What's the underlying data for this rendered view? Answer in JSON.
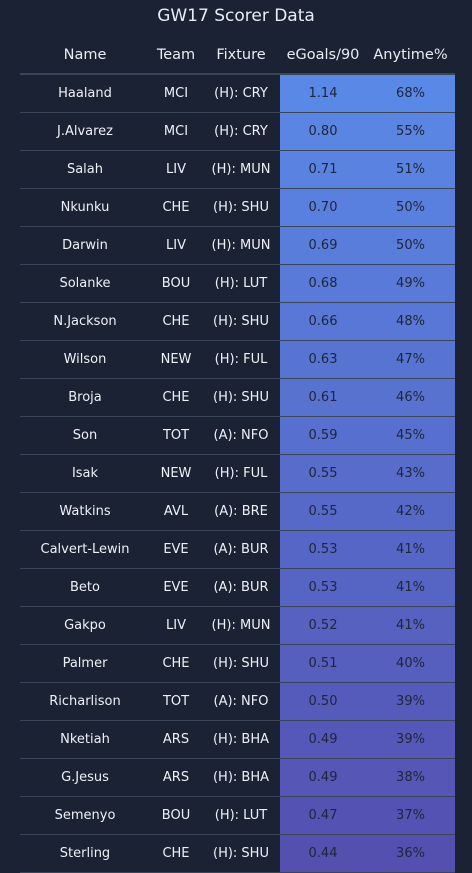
{
  "title": "GW17 Scorer Data",
  "columns": {
    "name": "Name",
    "team": "Team",
    "fixture": "Fixture",
    "egoals": "eGoals/90",
    "anytime": "Anytime%"
  },
  "colors": {
    "background": "#1a2233",
    "divider": "#3a4558",
    "heat_high": "#5a88e6",
    "heat_low": "#5450b0"
  },
  "rows": [
    {
      "name": "Haaland",
      "team": "MCI",
      "fixture": "(H): CRY",
      "egoals": "1.14",
      "anytime": "68%"
    },
    {
      "name": "J.Alvarez",
      "team": "MCI",
      "fixture": "(H): CRY",
      "egoals": "0.80",
      "anytime": "55%"
    },
    {
      "name": "Salah",
      "team": "LIV",
      "fixture": "(H): MUN",
      "egoals": "0.71",
      "anytime": "51%"
    },
    {
      "name": "Nkunku",
      "team": "CHE",
      "fixture": "(H): SHU",
      "egoals": "0.70",
      "anytime": "50%"
    },
    {
      "name": "Darwin",
      "team": "LIV",
      "fixture": "(H): MUN",
      "egoals": "0.69",
      "anytime": "50%"
    },
    {
      "name": "Solanke",
      "team": "BOU",
      "fixture": "(H): LUT",
      "egoals": "0.68",
      "anytime": "49%"
    },
    {
      "name": "N.Jackson",
      "team": "CHE",
      "fixture": "(H): SHU",
      "egoals": "0.66",
      "anytime": "48%"
    },
    {
      "name": "Wilson",
      "team": "NEW",
      "fixture": "(H): FUL",
      "egoals": "0.63",
      "anytime": "47%"
    },
    {
      "name": "Broja",
      "team": "CHE",
      "fixture": "(H): SHU",
      "egoals": "0.61",
      "anytime": "46%"
    },
    {
      "name": "Son",
      "team": "TOT",
      "fixture": "(A): NFO",
      "egoals": "0.59",
      "anytime": "45%"
    },
    {
      "name": "Isak",
      "team": "NEW",
      "fixture": "(H): FUL",
      "egoals": "0.55",
      "anytime": "43%"
    },
    {
      "name": "Watkins",
      "team": "AVL",
      "fixture": "(A): BRE",
      "egoals": "0.55",
      "anytime": "42%"
    },
    {
      "name": "Calvert-Lewin",
      "team": "EVE",
      "fixture": "(A): BUR",
      "egoals": "0.53",
      "anytime": "41%"
    },
    {
      "name": "Beto",
      "team": "EVE",
      "fixture": "(A): BUR",
      "egoals": "0.53",
      "anytime": "41%"
    },
    {
      "name": "Gakpo",
      "team": "LIV",
      "fixture": "(H): MUN",
      "egoals": "0.52",
      "anytime": "41%"
    },
    {
      "name": "Palmer",
      "team": "CHE",
      "fixture": "(H): SHU",
      "egoals": "0.51",
      "anytime": "40%"
    },
    {
      "name": "Richarlison",
      "team": "TOT",
      "fixture": "(A): NFO",
      "egoals": "0.50",
      "anytime": "39%"
    },
    {
      "name": "Nketiah",
      "team": "ARS",
      "fixture": "(H): BHA",
      "egoals": "0.49",
      "anytime": "39%"
    },
    {
      "name": "G.Jesus",
      "team": "ARS",
      "fixture": "(H): BHA",
      "egoals": "0.49",
      "anytime": "38%"
    },
    {
      "name": "Semenyo",
      "team": "BOU",
      "fixture": "(H): LUT",
      "egoals": "0.47",
      "anytime": "37%"
    },
    {
      "name": "Sterling",
      "team": "CHE",
      "fixture": "(H): SHU",
      "egoals": "0.44",
      "anytime": "36%"
    }
  ]
}
